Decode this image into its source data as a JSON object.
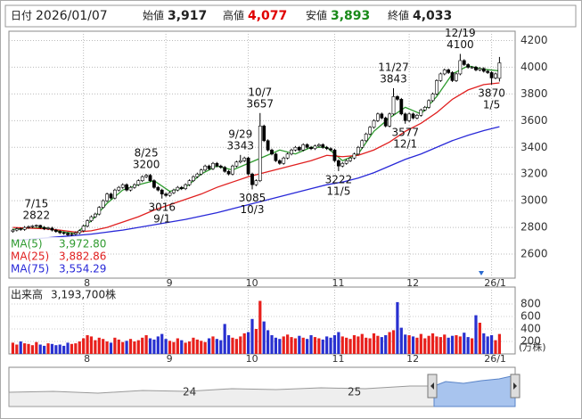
{
  "chart_data": {
    "type": "candlestick",
    "header": {
      "date_label": "日付",
      "date": "2026/01/07",
      "open_label": "始値",
      "open": "3,917",
      "high_label": "高値",
      "high": "4,077",
      "low_label": "安値",
      "low": "3,893",
      "close_label": "終値",
      "close": "4,033"
    },
    "candles": {
      "up_color": "#ffffff",
      "down_color": "#000000",
      "open": [
        2770,
        2780,
        2790,
        2785,
        2800,
        2805,
        2812,
        2815,
        2800,
        2790,
        2795,
        2780,
        2770,
        2760,
        2755,
        2745,
        2750,
        2760,
        2775,
        2810,
        2850,
        2880,
        2900,
        2950,
        3000,
        3050,
        3020,
        3080,
        3100,
        3120,
        3080,
        3100,
        3120,
        3150,
        3180,
        3190,
        3150,
        3100,
        3080,
        3050,
        3040,
        3060,
        3080,
        3100,
        3090,
        3120,
        3150,
        3180,
        3200,
        3230,
        3260,
        3240,
        3280,
        3260,
        3250,
        3220,
        3200,
        3260,
        3290,
        3300,
        3320,
        3200,
        3120,
        3150,
        3560,
        3450,
        3380,
        3350,
        3300,
        3280,
        3320,
        3350,
        3380,
        3400,
        3380,
        3420,
        3400,
        3390,
        3410,
        3420,
        3400,
        3390,
        3380,
        3300,
        3260,
        3280,
        3300,
        3320,
        3350,
        3400,
        3450,
        3500,
        3550,
        3600,
        3650,
        3620,
        3560,
        3650,
        3780,
        3760,
        3650,
        3600,
        3650,
        3620,
        3640,
        3680,
        3700,
        3750,
        3800,
        3900,
        3950,
        3980,
        3960,
        3900,
        3950,
        4050,
        4020,
        4000,
        4000,
        3980,
        3990,
        3970,
        3960,
        3920,
        3917
      ],
      "high": [
        2790,
        2800,
        2800,
        2810,
        2815,
        2818,
        2822,
        2820,
        2810,
        2805,
        2805,
        2790,
        2780,
        2770,
        2765,
        2760,
        2770,
        2785,
        2820,
        2860,
        2890,
        2910,
        2960,
        3010,
        3060,
        3060,
        3090,
        3110,
        3130,
        3130,
        3110,
        3130,
        3160,
        3190,
        3200,
        3200,
        3160,
        3110,
        3090,
        3060,
        3070,
        3090,
        3110,
        3110,
        3130,
        3160,
        3190,
        3210,
        3240,
        3270,
        3270,
        3290,
        3290,
        3270,
        3260,
        3230,
        3270,
        3300,
        3343,
        3330,
        3330,
        3210,
        3160,
        3657,
        3570,
        3460,
        3390,
        3360,
        3310,
        3330,
        3360,
        3390,
        3410,
        3410,
        3430,
        3430,
        3410,
        3420,
        3430,
        3430,
        3410,
        3400,
        3390,
        3310,
        3290,
        3310,
        3330,
        3360,
        3410,
        3460,
        3510,
        3560,
        3610,
        3660,
        3660,
        3630,
        3660,
        3843,
        3790,
        3770,
        3660,
        3660,
        3660,
        3650,
        3690,
        3710,
        3760,
        3810,
        3910,
        3960,
        3990,
        3990,
        3970,
        3960,
        4100,
        4060,
        4030,
        4010,
        4010,
        4000,
        4000,
        3980,
        3970,
        3960,
        4077
      ],
      "low": [
        2760,
        2770,
        2775,
        2775,
        2790,
        2795,
        2802,
        2790,
        2780,
        2780,
        2770,
        2760,
        2750,
        2745,
        2735,
        2735,
        2740,
        2750,
        2765,
        2800,
        2840,
        2870,
        2890,
        2940,
        2990,
        3010,
        3010,
        3070,
        3090,
        3070,
        3070,
        3090,
        3110,
        3140,
        3170,
        3140,
        3090,
        3070,
        3016,
        3030,
        3030,
        3050,
        3070,
        3080,
        3080,
        3110,
        3140,
        3170,
        3190,
        3220,
        3230,
        3230,
        3250,
        3240,
        3210,
        3190,
        3190,
        3250,
        3280,
        3290,
        3190,
        3085,
        3110,
        3140,
        3440,
        3370,
        3340,
        3290,
        3270,
        3270,
        3310,
        3340,
        3370,
        3370,
        3370,
        3390,
        3380,
        3380,
        3400,
        3390,
        3380,
        3370,
        3290,
        3222,
        3250,
        3270,
        3290,
        3310,
        3340,
        3390,
        3440,
        3490,
        3540,
        3590,
        3610,
        3550,
        3550,
        3640,
        3750,
        3640,
        3577,
        3590,
        3610,
        3610,
        3630,
        3670,
        3690,
        3740,
        3790,
        3890,
        3940,
        3950,
        3890,
        3890,
        3940,
        4010,
        3990,
        3990,
        3970,
        3970,
        3960,
        3950,
        3870,
        3910,
        3893
      ],
      "close": [
        2780,
        2790,
        2785,
        2800,
        2805,
        2812,
        2815,
        2800,
        2790,
        2795,
        2780,
        2770,
        2760,
        2755,
        2745,
        2750,
        2760,
        2775,
        2810,
        2850,
        2880,
        2900,
        2950,
        3000,
        3050,
        3020,
        3080,
        3100,
        3120,
        3080,
        3100,
        3120,
        3150,
        3180,
        3190,
        3150,
        3100,
        3080,
        3050,
        3040,
        3060,
        3080,
        3100,
        3090,
        3120,
        3150,
        3180,
        3200,
        3230,
        3260,
        3240,
        3280,
        3260,
        3250,
        3220,
        3200,
        3260,
        3290,
        3300,
        3320,
        3200,
        3120,
        3150,
        3560,
        3450,
        3380,
        3350,
        3300,
        3280,
        3320,
        3350,
        3380,
        3400,
        3380,
        3420,
        3400,
        3390,
        3410,
        3420,
        3400,
        3390,
        3380,
        3300,
        3260,
        3280,
        3300,
        3320,
        3350,
        3400,
        3450,
        3500,
        3550,
        3600,
        3650,
        3620,
        3560,
        3650,
        3780,
        3760,
        3650,
        3600,
        3650,
        3620,
        3640,
        3680,
        3700,
        3750,
        3800,
        3900,
        3950,
        3980,
        3960,
        3900,
        3950,
        4050,
        4020,
        4000,
        4000,
        3980,
        3990,
        3970,
        3960,
        3920,
        3950,
        4033
      ]
    },
    "xlim": [
      -1,
      128
    ],
    "xticks": [
      {
        "value": 18,
        "label": "8"
      },
      {
        "value": 39,
        "label": "9"
      },
      {
        "value": 60,
        "label": "10"
      },
      {
        "value": 82,
        "label": "11"
      },
      {
        "value": 101,
        "label": "12"
      },
      {
        "value": 122,
        "label": "26/1"
      }
    ],
    "ylim": [
      2420,
      4270
    ],
    "yticks": [
      2600,
      2800,
      3000,
      3200,
      3400,
      3600,
      3800,
      4000,
      4200
    ],
    "grid": true,
    "moving_averages": {
      "x": [
        0,
        4,
        8,
        12,
        16,
        20,
        24,
        28,
        32,
        36,
        40,
        44,
        48,
        52,
        56,
        60,
        64,
        68,
        72,
        76,
        80,
        84,
        88,
        92,
        96,
        100,
        104,
        108,
        112,
        116,
        120,
        124
      ],
      "series": [
        {
          "name": "MA(5)",
          "color": "#2e9a2e",
          "last_label": "3,972.80",
          "values": [
            2785,
            2795,
            2800,
            2770,
            2755,
            2850,
            2980,
            3080,
            3120,
            3150,
            3070,
            3100,
            3200,
            3260,
            3230,
            3280,
            3330,
            3380,
            3350,
            3400,
            3400,
            3300,
            3350,
            3520,
            3620,
            3700,
            3650,
            3780,
            3950,
            4010,
            3985,
            3972.8
          ]
        },
        {
          "name": "MA(25)",
          "color": "#e02020",
          "last_label": "3,882.86",
          "values": [
            2800,
            2795,
            2790,
            2780,
            2765,
            2775,
            2800,
            2840,
            2880,
            2930,
            2970,
            3010,
            3050,
            3100,
            3140,
            3180,
            3210,
            3240,
            3270,
            3300,
            3340,
            3330,
            3340,
            3380,
            3440,
            3520,
            3580,
            3660,
            3760,
            3830,
            3870,
            3882.86
          ]
        },
        {
          "name": "MA(75)",
          "color": "#2828d8",
          "last_label": "3,554.29",
          "values": [
            2700,
            2710,
            2720,
            2730,
            2740,
            2750,
            2765,
            2780,
            2800,
            2820,
            2840,
            2860,
            2885,
            2910,
            2940,
            2970,
            3000,
            3030,
            3060,
            3090,
            3120,
            3140,
            3170,
            3210,
            3260,
            3310,
            3350,
            3400,
            3450,
            3490,
            3525,
            3554.29
          ]
        }
      ]
    },
    "annotations": [
      {
        "label": "7/15",
        "value": 2822,
        "index": 6,
        "side": "above"
      },
      {
        "label": "8/25",
        "value": 3200,
        "index": 34,
        "side": "above"
      },
      {
        "label": "9/1",
        "value": 3016,
        "index": 38,
        "side": "below"
      },
      {
        "label": "9/29",
        "value": 3343,
        "index": 58,
        "side": "above"
      },
      {
        "label": "10/3",
        "value": 3085,
        "index": 61,
        "side": "below"
      },
      {
        "label": "10/7",
        "value": 3657,
        "index": 63,
        "side": "above"
      },
      {
        "label": "11/5",
        "value": 3222,
        "index": 83,
        "side": "below"
      },
      {
        "label": "11/27",
        "value": 3843,
        "index": 97,
        "side": "above"
      },
      {
        "label": "12/1",
        "value": 3577,
        "index": 100,
        "side": "below"
      },
      {
        "label": "12/19",
        "value": 4100,
        "index": 114,
        "side": "above"
      },
      {
        "label": "1/5",
        "value": 3870,
        "index": 122,
        "side": "below"
      }
    ],
    "volume": {
      "title": "出来高",
      "latest": "3,193,700株",
      "unit": "(万株)",
      "up_color": "#e8201c",
      "down_color": "#2830d0",
      "ylim": [
        0,
        900
      ],
      "yticks": [
        200,
        400,
        600,
        800
      ],
      "values": [
        180,
        150,
        200,
        170,
        160,
        140,
        190,
        150,
        130,
        170,
        160,
        140,
        150,
        130,
        180,
        160,
        170,
        200,
        250,
        300,
        280,
        220,
        260,
        240,
        200,
        180,
        260,
        230,
        190,
        210,
        240,
        200,
        220,
        260,
        300,
        250,
        230,
        280,
        320,
        240,
        210,
        190,
        250,
        220,
        180,
        200,
        260,
        230,
        210,
        190,
        250,
        280,
        240,
        220,
        480,
        300,
        260,
        240,
        280,
        330,
        350,
        560,
        400,
        850,
        520,
        380,
        300,
        260,
        240,
        280,
        310,
        270,
        250,
        290,
        260,
        240,
        300,
        270,
        250,
        230,
        280,
        260,
        300,
        350,
        280,
        260,
        240,
        300,
        280,
        320,
        260,
        250,
        330,
        290,
        270,
        300,
        350,
        380,
        830,
        420,
        310,
        300,
        280,
        260,
        320,
        250,
        290,
        330,
        280,
        270,
        310,
        260,
        290,
        300,
        280,
        340,
        270,
        250,
        620,
        500,
        330,
        280,
        300,
        220,
        319.37
      ]
    },
    "navigator": {
      "labels": [
        "24",
        "25"
      ]
    }
  }
}
